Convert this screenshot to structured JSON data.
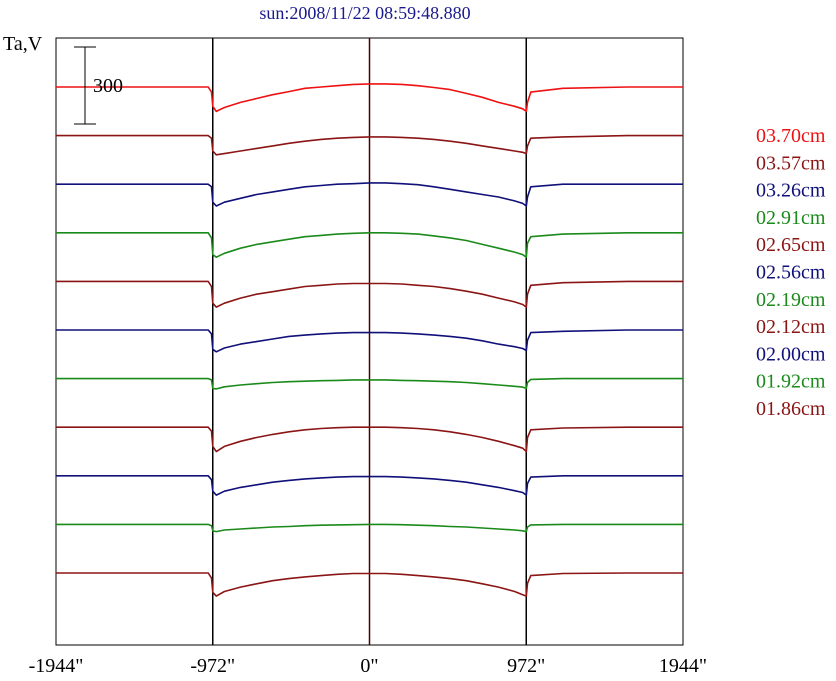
{
  "chart_data": {
    "type": "line",
    "title": "sun:2008/11/22 08:59:48.880",
    "ylabel": "Ta,V",
    "xlim": [
      -1944,
      1944
    ],
    "xticks": [
      {
        "value": -1944,
        "label": "-1944\""
      },
      {
        "value": -972,
        "label": "-972\""
      },
      {
        "value": 0,
        "label": "0\""
      },
      {
        "value": 972,
        "label": "972\""
      },
      {
        "value": 1944,
        "label": "1944\""
      }
    ],
    "vlines": [
      -972,
      0,
      972
    ],
    "scale_bar": {
      "label": "300",
      "value": 300
    },
    "grid": false,
    "legend_position": "right",
    "profile_x": [
      -1944,
      -1600,
      -1200,
      -1000,
      -980,
      -972,
      -950,
      -900,
      -800,
      -700,
      -600,
      -500,
      -400,
      -300,
      -200,
      -100,
      0,
      100,
      200,
      300,
      400,
      500,
      600,
      700,
      800,
      900,
      950,
      972,
      980,
      1000,
      1200,
      1600,
      1944
    ],
    "series": [
      {
        "name": "03.70cm",
        "color": "#ee1111",
        "values": [
          0,
          0,
          0,
          0,
          -20,
          -75,
          -95,
          -80,
          -60,
          -45,
          -30,
          -18,
          -5,
          0,
          5,
          10,
          12,
          12,
          10,
          5,
          -2,
          -10,
          -25,
          -40,
          -60,
          -75,
          -85,
          -95,
          -60,
          -20,
          -5,
          0,
          0
        ]
      },
      {
        "name": "03.57cm",
        "color": "#8b1515",
        "values": [
          0,
          0,
          0,
          0,
          -10,
          -60,
          -75,
          -70,
          -60,
          -50,
          -40,
          -30,
          -22,
          -15,
          -10,
          -7,
          -5,
          -5,
          -7,
          -10,
          -15,
          -22,
          -30,
          -40,
          -50,
          -60,
          -65,
          -70,
          -40,
          -10,
          -5,
          0,
          0
        ]
      },
      {
        "name": "03.26cm",
        "color": "#10107a",
        "values": [
          0,
          0,
          0,
          0,
          -10,
          -70,
          -85,
          -70,
          -55,
          -40,
          -30,
          -20,
          -10,
          -5,
          0,
          2,
          5,
          5,
          2,
          -2,
          -10,
          -20,
          -30,
          -40,
          -50,
          -65,
          -75,
          -85,
          -50,
          -10,
          0,
          0,
          0
        ]
      },
      {
        "name": "02.91cm",
        "color": "#1a8a1a",
        "values": [
          0,
          0,
          0,
          0,
          -20,
          -85,
          -95,
          -80,
          -60,
          -45,
          -35,
          -25,
          -15,
          -10,
          -5,
          -2,
          0,
          0,
          -2,
          -5,
          -12,
          -20,
          -30,
          -45,
          -60,
          -75,
          -85,
          -95,
          -40,
          -15,
          -5,
          0,
          0
        ]
      },
      {
        "name": "02.65cm",
        "color": "#8b1515",
        "values": [
          0,
          0,
          0,
          0,
          -20,
          -85,
          -100,
          -85,
          -65,
          -50,
          -40,
          -30,
          -20,
          -15,
          -10,
          -8,
          -8,
          -8,
          -10,
          -15,
          -20,
          -28,
          -38,
          -50,
          -65,
          -80,
          -90,
          -100,
          -50,
          -15,
          -5,
          0,
          0
        ]
      },
      {
        "name": "02.56cm",
        "color": "#10107a",
        "values": [
          0,
          0,
          0,
          0,
          -15,
          -75,
          -85,
          -70,
          -55,
          -45,
          -35,
          -25,
          -20,
          -15,
          -12,
          -10,
          -10,
          -10,
          -12,
          -15,
          -20,
          -25,
          -32,
          -42,
          -55,
          -65,
          -72,
          -80,
          -40,
          -10,
          -5,
          0,
          0
        ]
      },
      {
        "name": "02.19cm",
        "color": "#1a8a1a",
        "values": [
          0,
          0,
          0,
          0,
          -5,
          -38,
          -40,
          -32,
          -25,
          -20,
          -15,
          -12,
          -10,
          -8,
          -7,
          -5,
          -5,
          -5,
          -7,
          -8,
          -10,
          -12,
          -15,
          -20,
          -25,
          -30,
          -33,
          -38,
          -15,
          -3,
          0,
          0,
          0
        ]
      },
      {
        "name": "02.12cm",
        "color": "#8b1515",
        "values": [
          0,
          0,
          0,
          0,
          -15,
          -75,
          -95,
          -75,
          -55,
          -40,
          -28,
          -18,
          -10,
          -5,
          -2,
          0,
          0,
          0,
          -2,
          -5,
          -10,
          -18,
          -28,
          -40,
          -55,
          -72,
          -82,
          -95,
          -40,
          -10,
          -3,
          0,
          0
        ]
      },
      {
        "name": "02.00cm",
        "color": "#10107a",
        "values": [
          0,
          0,
          0,
          0,
          -15,
          -60,
          -75,
          -60,
          -45,
          -35,
          -25,
          -18,
          -12,
          -8,
          -5,
          -3,
          -3,
          -3,
          -5,
          -8,
          -12,
          -18,
          -25,
          -35,
          -45,
          -58,
          -65,
          -75,
          -30,
          -5,
          0,
          0,
          0
        ]
      },
      {
        "name": "01.92cm",
        "color": "#1a8a1a",
        "values": [
          0,
          0,
          0,
          0,
          -5,
          -25,
          -28,
          -22,
          -18,
          -14,
          -10,
          -8,
          -5,
          -3,
          -2,
          -1,
          0,
          0,
          -1,
          -3,
          -5,
          -8,
          -10,
          -14,
          -18,
          -22,
          -25,
          -28,
          -10,
          -2,
          0,
          0,
          0
        ]
      },
      {
        "name": "01.86cm",
        "color": "#8b1515",
        "values": [
          0,
          0,
          0,
          0,
          -20,
          -75,
          -90,
          -72,
          -55,
          -42,
          -30,
          -22,
          -15,
          -10,
          -5,
          -2,
          -2,
          -2,
          -5,
          -10,
          -15,
          -22,
          -30,
          -42,
          -55,
          -72,
          -85,
          -90,
          -40,
          -10,
          -2,
          0,
          0
        ]
      }
    ]
  }
}
